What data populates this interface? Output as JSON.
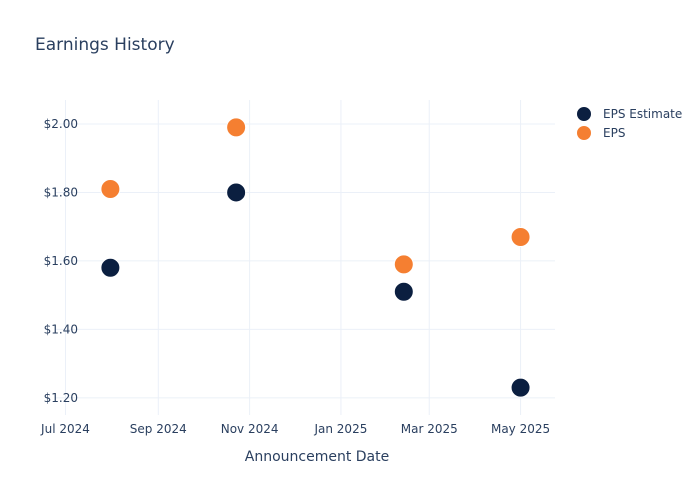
{
  "chart_data": {
    "type": "scatter",
    "title": "Earnings History",
    "xlabel": "Announcement Date",
    "ylabel": "",
    "x_axis": {
      "type": "date",
      "range": [
        "2024-06-24",
        "2025-05-24"
      ],
      "ticks": [
        {
          "date": "2024-07-01",
          "label": "Jul 2024"
        },
        {
          "date": "2024-09-01",
          "label": "Sep 2024"
        },
        {
          "date": "2024-11-01",
          "label": "Nov 2024"
        },
        {
          "date": "2025-01-01",
          "label": "Jan 2025"
        },
        {
          "date": "2025-03-01",
          "label": "Mar 2025"
        },
        {
          "date": "2025-05-01",
          "label": "May 2025"
        }
      ]
    },
    "y_axis": {
      "range": [
        1.15,
        2.07
      ],
      "ticks": [
        {
          "value": 1.2,
          "label": "$1.20"
        },
        {
          "value": 1.4,
          "label": "$1.40"
        },
        {
          "value": 1.6,
          "label": "$1.60"
        },
        {
          "value": 1.8,
          "label": "$1.80"
        },
        {
          "value": 2.0,
          "label": "$2.00"
        }
      ]
    },
    "grid": true,
    "legend_position": "top-right",
    "series": [
      {
        "name": "EPS Estimate",
        "color": "#0b1f40",
        "points": [
          {
            "x": "2024-07-31",
            "y": 1.58
          },
          {
            "x": "2024-10-23",
            "y": 1.8
          },
          {
            "x": "2025-02-12",
            "y": 1.51
          },
          {
            "x": "2025-05-01",
            "y": 1.23
          }
        ]
      },
      {
        "name": "EPS",
        "color": "#f57f31",
        "points": [
          {
            "x": "2024-07-31",
            "y": 1.81
          },
          {
            "x": "2024-10-23",
            "y": 1.99
          },
          {
            "x": "2025-02-12",
            "y": 1.59
          },
          {
            "x": "2025-05-01",
            "y": 1.67
          }
        ]
      }
    ]
  }
}
